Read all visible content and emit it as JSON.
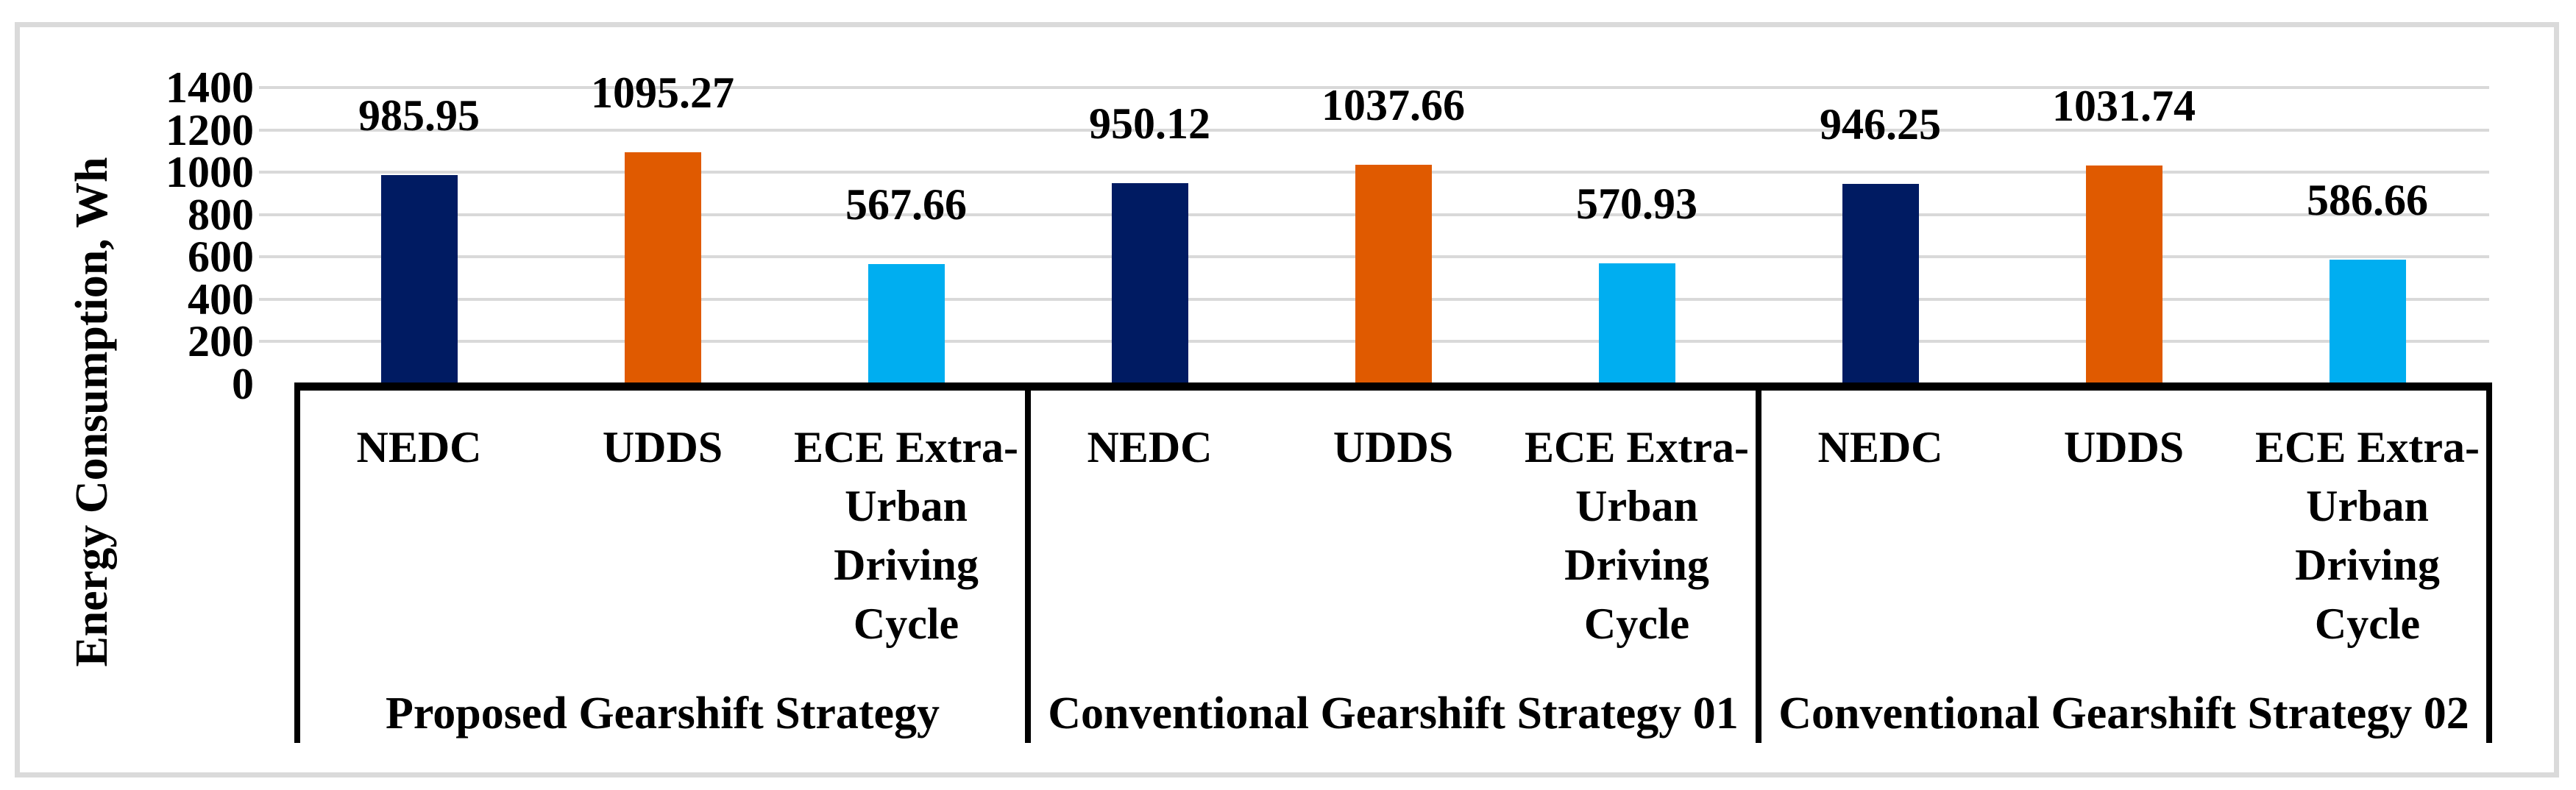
{
  "figure": {
    "background": "#FFFFFF",
    "border_color": "#DADADA"
  },
  "chart_data": {
    "type": "bar",
    "title": "",
    "xlabel": "",
    "ylabel": "Energy Consumption, Wh",
    "ylim": [
      0,
      1400
    ],
    "yticks": [
      0,
      200,
      400,
      600,
      800,
      1000,
      1200,
      1400
    ],
    "grid": true,
    "legend": false,
    "gridline_color": "#D9D9D9",
    "axis_color": "#000000",
    "groups": [
      {
        "label": "Proposed Gearshift Strategy",
        "bars": [
          {
            "category": "NEDC",
            "category_lines": "NEDC",
            "value": 985.95,
            "label": "985.95",
            "color": "#001B62"
          },
          {
            "category": "UDDS",
            "category_lines": "UDDS",
            "value": 1095.27,
            "label": "1095.27",
            "color": "#E05A00"
          },
          {
            "category": "ECE Extra-Urban Driving Cycle",
            "category_lines": "ECE Extra-\nUrban\nDriving\nCycle",
            "value": 567.66,
            "label": "567.66",
            "color": "#00AEF0"
          }
        ]
      },
      {
        "label": "Conventional Gearshift Strategy 01",
        "bars": [
          {
            "category": "NEDC",
            "category_lines": "NEDC",
            "value": 950.12,
            "label": "950.12",
            "color": "#001B62"
          },
          {
            "category": "UDDS",
            "category_lines": "UDDS",
            "value": 1037.66,
            "label": "1037.66",
            "color": "#E05A00"
          },
          {
            "category": "ECE Extra-Urban Driving Cycle",
            "category_lines": "ECE Extra-\nUrban\nDriving\nCycle",
            "value": 570.93,
            "label": "570.93",
            "color": "#00AEF0"
          }
        ]
      },
      {
        "label": "Conventional Gearshift Strategy 02",
        "bars": [
          {
            "category": "NEDC",
            "category_lines": "NEDC",
            "value": 946.25,
            "label": "946.25",
            "color": "#001B62"
          },
          {
            "category": "UDDS",
            "category_lines": "UDDS",
            "value": 1031.74,
            "label": "1031.74",
            "color": "#E05A00"
          },
          {
            "category": "ECE Extra-Urban Driving Cycle",
            "category_lines": "ECE Extra-\nUrban\nDriving\nCycle",
            "value": 586.66,
            "label": "586.66",
            "color": "#00AEF0"
          }
        ]
      }
    ]
  }
}
